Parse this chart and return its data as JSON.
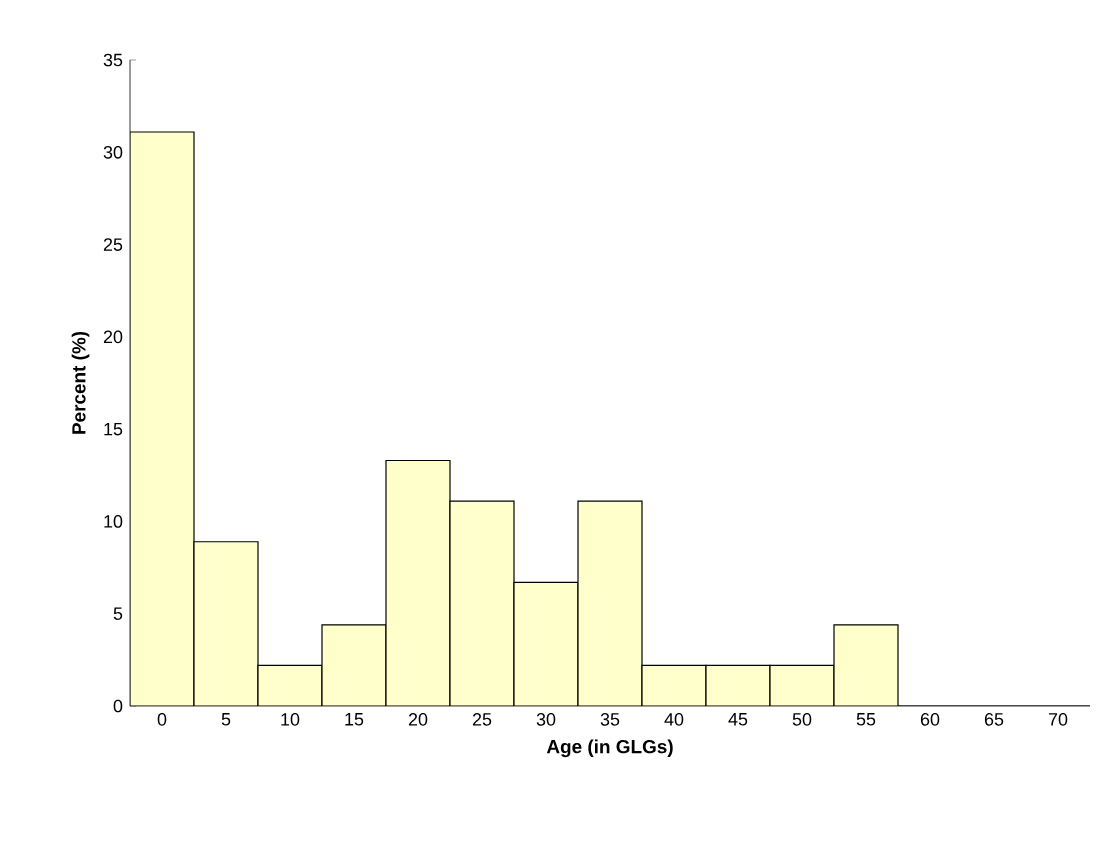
{
  "chart_data": {
    "type": "bar",
    "xlabel": "Age (in GLGs)",
    "ylabel": "Percent (%)",
    "categories": [
      "0",
      "5",
      "10",
      "15",
      "20",
      "25",
      "30",
      "35",
      "40",
      "45",
      "50",
      "55",
      "60",
      "65",
      "70"
    ],
    "values": [
      31.1,
      8.9,
      2.2,
      4.4,
      13.3,
      11.1,
      6.7,
      11.1,
      2.2,
      2.2,
      2.2,
      4.4,
      0,
      0,
      0
    ],
    "color": "#ffffcc",
    "ylim": [
      0,
      35
    ],
    "yticks": [
      0,
      5,
      10,
      15,
      20,
      25,
      30,
      35
    ]
  }
}
